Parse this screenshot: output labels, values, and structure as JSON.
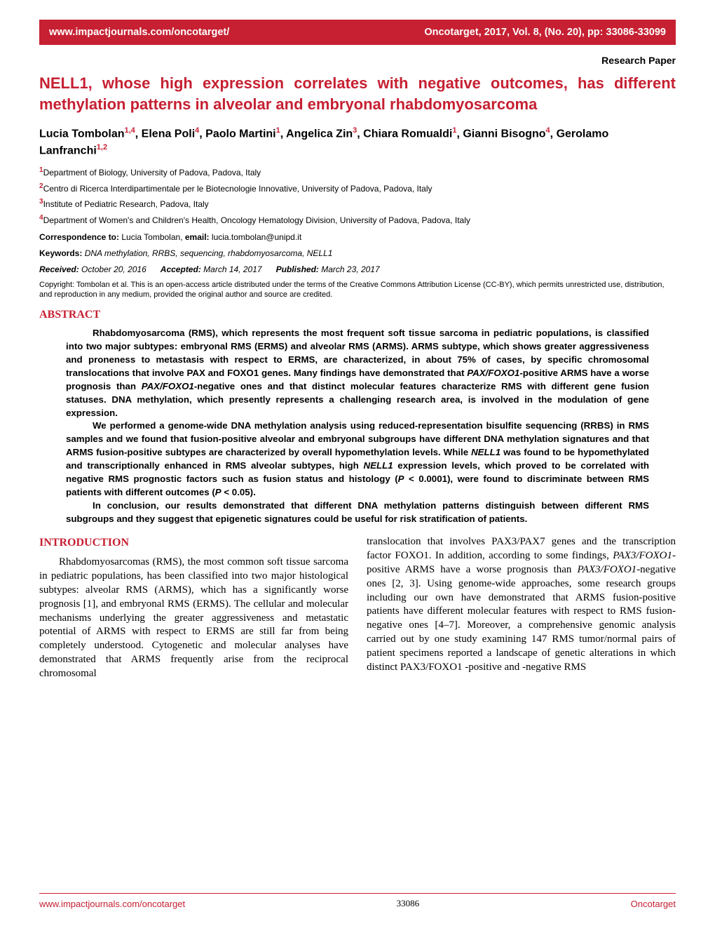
{
  "header": {
    "url": "www.impactjournals.com/oncotarget/",
    "citation": "Oncotarget, 2017, Vol. 8, (No. 20), pp: 33086-33099"
  },
  "paper_type": "Research Paper",
  "title": "NELL1, whose high expression correlates with negative outcomes, has different methylation patterns in alveolar and embryonal rhabdomyosarcoma",
  "authors_html": "Lucia Tombolan<sup>1,4</sup>, Elena Poli<sup>4</sup>, Paolo Martini<sup>1</sup>, Angelica Zin<sup>3</sup>, Chiara Romualdi<sup>1</sup>, Gianni Bisogno<sup>4</sup>, Gerolamo Lanfranchi<sup>1,2</sup>",
  "affiliations": [
    {
      "num": "1",
      "text": "Department of Biology, University of Padova, Padova, Italy"
    },
    {
      "num": "2",
      "text": "Centro di Ricerca Interdipartimentale per le Biotecnologie Innovative, University of Padova, Padova, Italy"
    },
    {
      "num": "3",
      "text": "Institute of Pediatric Research, Padova, Italy"
    },
    {
      "num": "4",
      "text": "Department of Women's and Children's Health, Oncology Hematology Division, University of Padova, Padova, Italy"
    }
  ],
  "correspondence": {
    "label": "Correspondence to:",
    "name": "Lucia Tombolan,",
    "email_label": "email:",
    "email": "lucia.tombolan@unipd.it"
  },
  "keywords": {
    "label": "Keywords:",
    "text": "DNA methylation, RRBS, sequencing, rhabdomyosarcoma, NELL1"
  },
  "dates": {
    "received_label": "Received:",
    "received": "October 20, 2016",
    "accepted_label": "Accepted:",
    "accepted": "March 14, 2017",
    "published_label": "Published:",
    "published": "March 23, 2017"
  },
  "copyright": "Copyright: Tombolan et al. This is an open-access article distributed under the terms of the Creative Commons Attribution License (CC-BY), which permits unrestricted use, distribution, and reproduction in any medium, provided the original author and source are credited.",
  "abstract": {
    "heading": "ABSTRACT",
    "p1": "Rhabdomyosarcoma (RMS), which represents the most frequent soft tissue sarcoma in pediatric populations, is classified into two major subtypes: embryonal RMS (ERMS) and alveolar RMS (ARMS). ARMS subtype, which shows greater aggressiveness and proneness to metastasis with respect to ERMS, are characterized, in about 75% of cases, by specific chromosomal translocations that involve PAX and FOXO1 genes. Many findings have demonstrated that <i>PAX/FOXO1</i>-positive ARMS have a worse prognosis than <i>PAX/FOXO1</i>-negative ones and that distinct molecular features characterize RMS with different gene fusion statuses. DNA methylation, which presently represents a challenging research area, is involved in the modulation of gene expression.",
    "p2": "We performed a genome-wide DNA methylation analysis using reduced-representation bisulfite sequencing (RRBS) in RMS samples and we found that fusion-positive alveolar and embryonal subgroups have different DNA methylation signatures and that ARMS fusion-positive subtypes are characterized by overall hypomethylation levels. While <i>NELL1</i> was found to be hypomethylated and transcriptionally enhanced in RMS alveolar subtypes, high <i>NELL1</i> expression levels, which proved to be correlated with negative RMS prognostic factors such as fusion status and histology (<i>P</i> < 0.0001), were found to discriminate between RMS patients with different outcomes (<i>P</i> < 0.05).",
    "p3": "In conclusion, our results demonstrated that different DNA methylation patterns distinguish between different RMS subgroups and they suggest that epigenetic signatures could be useful for risk stratification of patients."
  },
  "introduction": {
    "heading": "INTRODUCTION",
    "col1": "Rhabdomyosarcomas (RMS), the most common soft tissue sarcoma in pediatric populations, has been classified into two major histological subtypes: alveolar RMS (ARMS), which has a significantly worse prognosis [1], and embryonal RMS (ERMS). The cellular and molecular mechanisms underlying the greater aggressiveness and metastatic potential of ARMS with respect to ERMS are still far from being completely understood. Cytogenetic and molecular analyses have demonstrated that ARMS frequently arise from the reciprocal chromosomal",
    "col2": "translocation that involves PAX3/PAX7 genes and the transcription factor FOXO1. In addition, according to some findings, <i>PAX3/FOXO1</i>-positive ARMS have a worse prognosis than <i>PAX3/FOXO1</i>-negative ones [2, 3]. Using genome-wide approaches, some research groups including our own have demonstrated that ARMS fusion-positive patients have different molecular features with respect to RMS fusion-negative ones [4–7]. Moreover, a comprehensive genomic analysis carried out by one study examining 147 RMS tumor/normal pairs of patient specimens reported a landscape of genetic alterations in which distinct PAX3/FOXO1 -positive and -negative RMS"
  },
  "footer": {
    "url": "www.impactjournals.com/oncotarget",
    "page": "33086",
    "journal": "Oncotarget"
  },
  "colors": {
    "brand": "#c62032",
    "text": "#000000",
    "bg": "#ffffff"
  }
}
